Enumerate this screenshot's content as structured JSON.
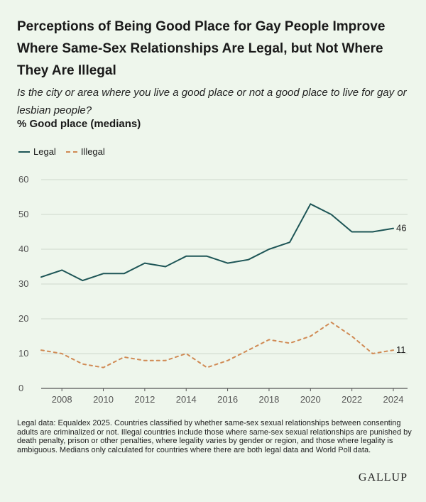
{
  "title": "Perceptions of Being Good Place for Gay People Improve Where Same-Sex Relationships Are Legal, but Not Where They Are Illegal",
  "subtitle": "Is the city or area where you live a good place or not a good place to live for gay or lesbian people?",
  "unit_label": "% Good place (medians)",
  "note": "Legal data: Equaldex 2025. Countries classified by whether same-sex sexual relationships between consenting adults are criminalized or not. Illegal countries include those where same-sex sexual relationships are punished by death penalty, prison or other penalties, where legality varies by gender or region, and those where legality is ambiguous. Medians only calculated for countries where there are both legal data and World Poll data.",
  "logo": "GALLUP",
  "colors": {
    "legal": "#1d5556",
    "illegal": "#d08a54",
    "background": "#eef6ec",
    "grid": "#cfd8cc"
  },
  "chart_data": {
    "type": "line",
    "title": "Perceptions of Being Good Place for Gay People Improve Where Same-Sex Relationships Are Legal, but Not Where They Are Illegal",
    "ylabel": "% Good place (medians)",
    "xlabel": "",
    "x": [
      2007,
      2008,
      2009,
      2010,
      2011,
      2012,
      2013,
      2014,
      2015,
      2016,
      2017,
      2018,
      2019,
      2020,
      2021,
      2022,
      2023,
      2024
    ],
    "xticks": [
      "2008",
      "2010",
      "2012",
      "2014",
      "2016",
      "2018",
      "2020",
      "2022",
      "2024"
    ],
    "yticks": [
      "0",
      "10",
      "20",
      "30",
      "40",
      "50",
      "60"
    ],
    "ylim": [
      0,
      60
    ],
    "xlim": [
      2007,
      2024
    ],
    "grid": true,
    "legend_position": "top-left",
    "series": [
      {
        "name": "Legal",
        "style": "solid",
        "end_label": "46",
        "values": [
          32,
          34,
          31,
          33,
          33,
          36,
          35,
          38,
          38,
          36,
          37,
          40,
          42,
          53,
          50,
          45,
          45,
          46
        ]
      },
      {
        "name": "Illegal",
        "style": "dashed",
        "end_label": "11",
        "values": [
          11,
          10,
          7,
          6,
          9,
          8,
          8,
          10,
          6,
          8,
          11,
          14,
          13,
          15,
          19,
          15,
          10,
          11
        ]
      }
    ]
  }
}
